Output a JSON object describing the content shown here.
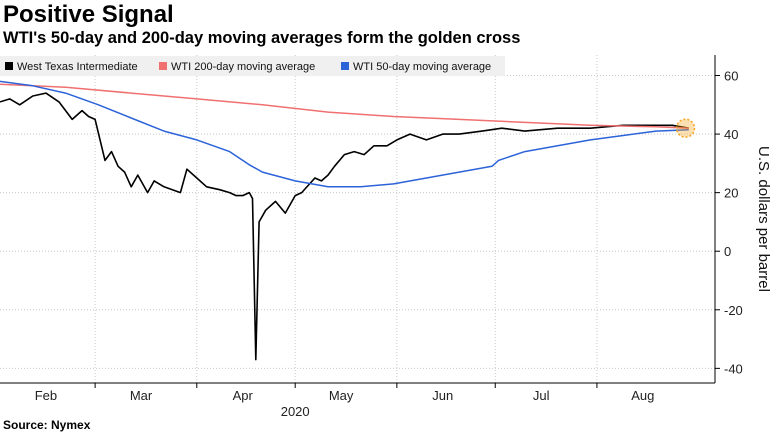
{
  "title": "Positive Signal",
  "subtitle": "WTI's 50-day and 200-day moving averages form the golden cross",
  "source": "Source: Nymex",
  "chart_data": {
    "type": "line",
    "ylabel": "U.S. dollars per barrel",
    "ylim": [
      -45,
      67
    ],
    "yticks": [
      -40,
      -20,
      0,
      20,
      40,
      60
    ],
    "x_labels": [
      "Feb",
      "Mar",
      "Apr",
      "May",
      "Jun",
      "Jul",
      "Aug"
    ],
    "year_label": "2020",
    "xlim": [
      0,
      218
    ],
    "month_starts": [
      0,
      29,
      60,
      90,
      121,
      151,
      182
    ],
    "x_label_days": [
      14,
      43,
      74,
      104,
      135,
      165,
      196
    ],
    "grid": true,
    "legend_position": "top-left",
    "highlight": {
      "x": 209,
      "y": 42,
      "color": "#f5a623",
      "label": "golden cross"
    },
    "series": [
      {
        "name": "West Texas Intermediate",
        "color": "#000000",
        "x": [
          0,
          3,
          6,
          10,
          14,
          18,
          22,
          25,
          27,
          29,
          32,
          34,
          36,
          38,
          40,
          42,
          45,
          47,
          50,
          55,
          57,
          60,
          63,
          67,
          70,
          72,
          74,
          76,
          77,
          78,
          79,
          81,
          84,
          87,
          90,
          92,
          96,
          98,
          100,
          102,
          105,
          108,
          111,
          114,
          118,
          121,
          125,
          130,
          135,
          140,
          147,
          153,
          160,
          170,
          180,
          190,
          200,
          205,
          210
        ],
        "y": [
          51,
          52,
          50,
          53,
          54,
          51,
          45,
          48,
          46,
          45,
          31,
          34,
          29,
          27,
          22,
          26,
          20,
          24,
          22,
          20,
          28,
          25,
          22,
          21,
          20,
          19,
          19,
          20,
          18,
          -37,
          10,
          14,
          17,
          13,
          19,
          20,
          25,
          24,
          26,
          29,
          33,
          34,
          33,
          36,
          36,
          38,
          40,
          38,
          40,
          40,
          41,
          42,
          41,
          42,
          42,
          43,
          43,
          43,
          42
        ]
      },
      {
        "name": "WTI 200-day moving average",
        "color": "#f07070",
        "x": [
          0,
          20,
          40,
          60,
          80,
          100,
          120,
          140,
          160,
          180,
          200,
          210
        ],
        "y": [
          57,
          56,
          54,
          52,
          50,
          47.5,
          46,
          45,
          44,
          43,
          42.5,
          42
        ]
      },
      {
        "name": "WTI 50-day moving average",
        "color": "#2c63d8",
        "x": [
          0,
          10,
          20,
          30,
          40,
          50,
          60,
          70,
          76,
          80,
          90,
          100,
          110,
          120,
          130,
          140,
          150,
          152,
          160,
          170,
          180,
          190,
          200,
          210
        ],
        "y": [
          58,
          56.5,
          54,
          50,
          45.5,
          41,
          38,
          34,
          29.5,
          27,
          24,
          22,
          22,
          23,
          25,
          27,
          29,
          31,
          34,
          36,
          38,
          39.5,
          41,
          41.5
        ]
      }
    ]
  }
}
